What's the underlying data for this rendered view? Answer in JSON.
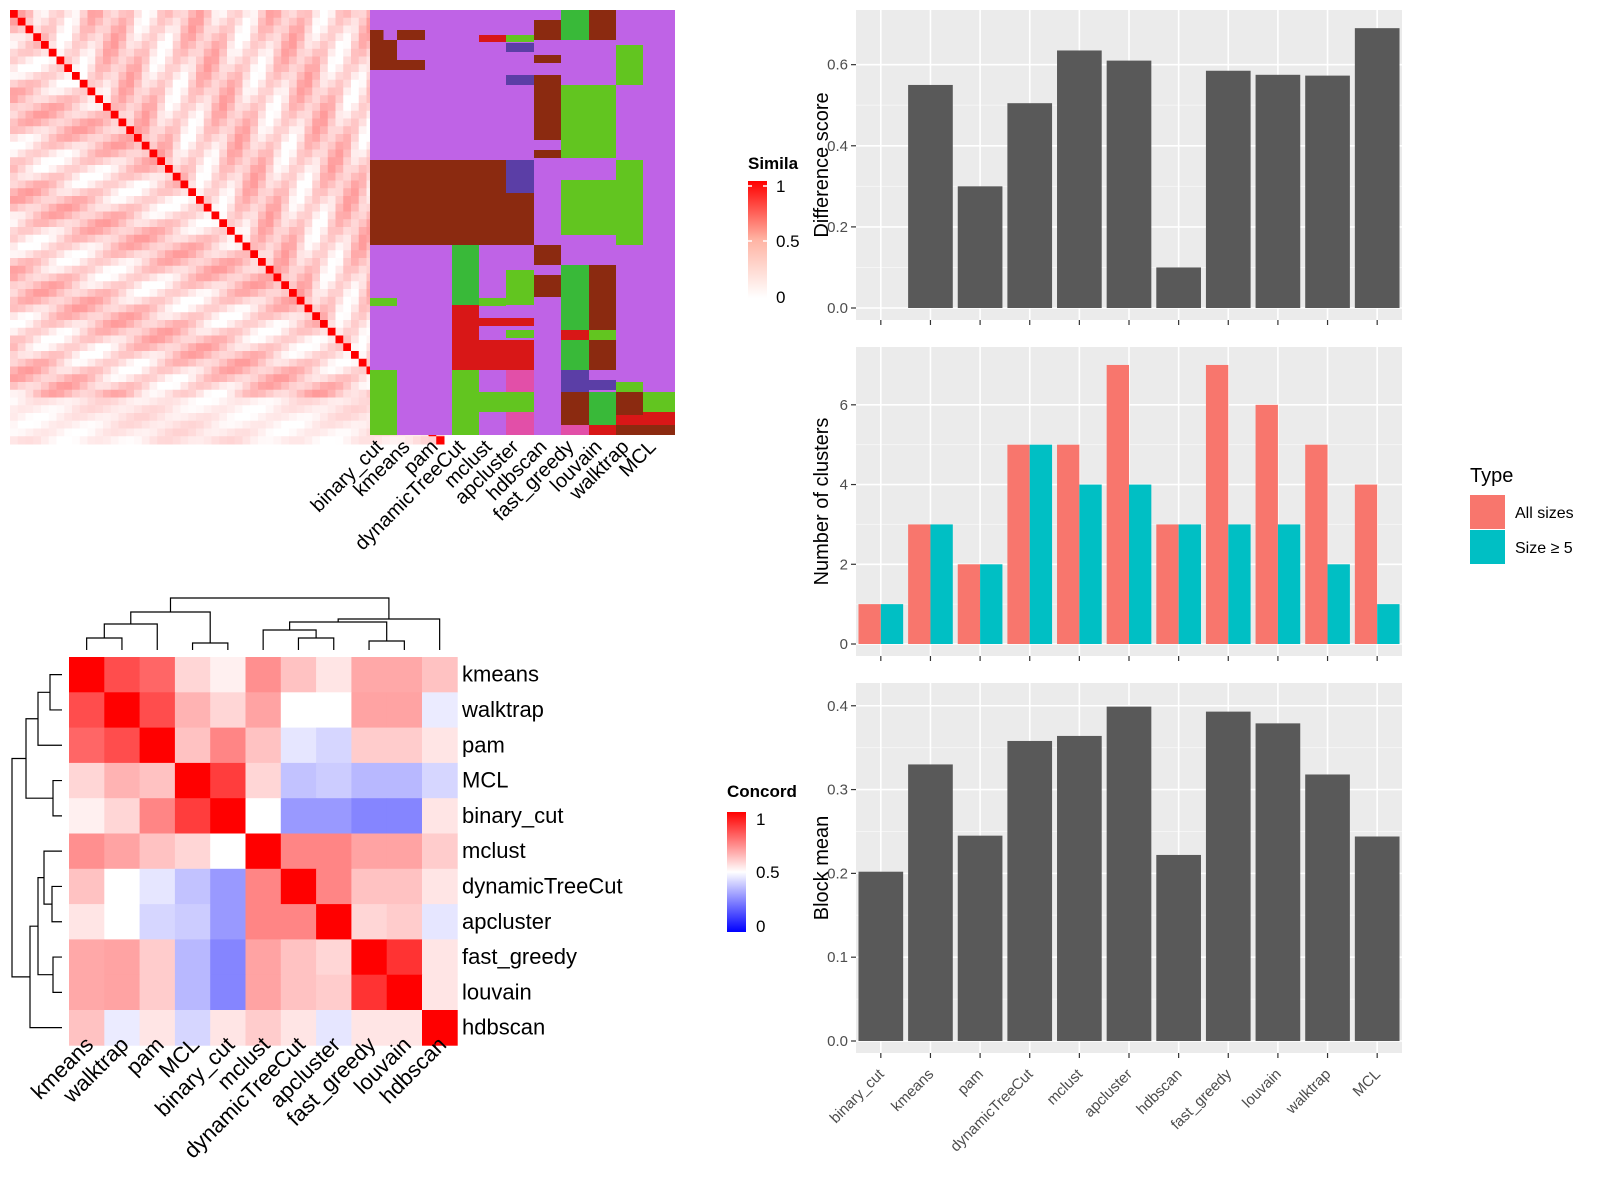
{
  "chart_data": [
    {
      "type": "heatmap",
      "panel": "similarity-heatmap",
      "legend": {
        "title": "Similarity",
        "title_visible": "Simila",
        "ticks": [
          "1",
          "0.5",
          "0"
        ],
        "colors": [
          "#ffffff",
          "#ff0000"
        ]
      },
      "size": 56,
      "diagonal_value": 1,
      "note_colors": {
        "low": "#ffffff",
        "high": "#ff0000"
      }
    },
    {
      "type": "heatmap",
      "panel": "cluster-membership",
      "columns": [
        "binary_cut",
        "kmeans",
        "pam",
        "dynamicTreeCut",
        "mclust",
        "apcluster",
        "hdbscan",
        "fast_greedy",
        "louvain",
        "walktrap",
        "MCL"
      ],
      "palette": {
        "purple": "#bf63e6",
        "brown": "#8b2a10",
        "green": "#62c520",
        "lime": "#39b939",
        "red": "#d81717",
        "pink": "#e24fa8",
        "indigo": "#5b3ea6"
      },
      "segments": [
        {
          "col": 1,
          "y0": 30,
          "y1": 40,
          "color": "brown",
          "w": 0.5
        },
        {
          "col": 1,
          "y0": 40,
          "y1": 70,
          "color": "brown"
        },
        {
          "col": 1,
          "y0": 160,
          "y1": 245,
          "color": "brown"
        },
        {
          "col": 1,
          "y0": 298,
          "y1": 306,
          "color": "green"
        },
        {
          "col": 1,
          "y0": 370,
          "y1": 435,
          "color": "green"
        },
        {
          "col": 2,
          "y0": 30,
          "y1": 40,
          "color": "brown"
        },
        {
          "col": 2,
          "y0": 60,
          "y1": 70,
          "color": "brown"
        },
        {
          "col": 2,
          "y0": 160,
          "y1": 245,
          "color": "brown"
        },
        {
          "col": 3,
          "y0": 160,
          "y1": 245,
          "color": "brown"
        },
        {
          "col": 4,
          "y0": 160,
          "y1": 245,
          "color": "brown"
        },
        {
          "col": 4,
          "y0": 245,
          "y1": 305,
          "color": "lime"
        },
        {
          "col": 4,
          "y0": 305,
          "y1": 370,
          "color": "red"
        },
        {
          "col": 4,
          "y0": 370,
          "y1": 435,
          "color": "green"
        },
        {
          "col": 5,
          "y0": 35,
          "y1": 42,
          "color": "red"
        },
        {
          "col": 5,
          "y0": 160,
          "y1": 245,
          "color": "brown"
        },
        {
          "col": 5,
          "y0": 298,
          "y1": 306,
          "color": "green"
        },
        {
          "col": 5,
          "y0": 318,
          "y1": 326,
          "color": "red"
        },
        {
          "col": 5,
          "y0": 340,
          "y1": 370,
          "color": "red"
        },
        {
          "col": 5,
          "y0": 392,
          "y1": 412,
          "color": "green"
        },
        {
          "col": 6,
          "y0": 35,
          "y1": 42,
          "color": "green"
        },
        {
          "col": 6,
          "y0": 43,
          "y1": 52,
          "color": "indigo"
        },
        {
          "col": 6,
          "y0": 75,
          "y1": 85,
          "color": "indigo"
        },
        {
          "col": 6,
          "y0": 160,
          "y1": 193,
          "color": "indigo"
        },
        {
          "col": 6,
          "y0": 193,
          "y1": 245,
          "color": "brown"
        },
        {
          "col": 6,
          "y0": 270,
          "y1": 305,
          "color": "green"
        },
        {
          "col": 6,
          "y0": 318,
          "y1": 326,
          "color": "red"
        },
        {
          "col": 6,
          "y0": 330,
          "y1": 338,
          "color": "green"
        },
        {
          "col": 6,
          "y0": 340,
          "y1": 370,
          "color": "red"
        },
        {
          "col": 6,
          "y0": 370,
          "y1": 392,
          "color": "pink"
        },
        {
          "col": 6,
          "y0": 392,
          "y1": 412,
          "color": "green"
        },
        {
          "col": 6,
          "y0": 412,
          "y1": 435,
          "color": "pink"
        },
        {
          "col": 7,
          "y0": 20,
          "y1": 40,
          "color": "brown"
        },
        {
          "col": 7,
          "y0": 55,
          "y1": 63,
          "color": "brown"
        },
        {
          "col": 7,
          "y0": 75,
          "y1": 140,
          "color": "brown"
        },
        {
          "col": 7,
          "y0": 150,
          "y1": 158,
          "color": "brown"
        },
        {
          "col": 7,
          "y0": 245,
          "y1": 265,
          "color": "brown"
        },
        {
          "col": 7,
          "y0": 275,
          "y1": 297,
          "color": "brown"
        },
        {
          "col": 8,
          "y0": 10,
          "y1": 40,
          "color": "lime"
        },
        {
          "col": 8,
          "y0": 85,
          "y1": 158,
          "color": "green"
        },
        {
          "col": 8,
          "y0": 180,
          "y1": 235,
          "color": "green"
        },
        {
          "col": 8,
          "y0": 265,
          "y1": 330,
          "color": "lime"
        },
        {
          "col": 8,
          "y0": 330,
          "y1": 340,
          "color": "red"
        },
        {
          "col": 8,
          "y0": 340,
          "y1": 370,
          "color": "lime"
        },
        {
          "col": 8,
          "y0": 370,
          "y1": 392,
          "color": "indigo"
        },
        {
          "col": 8,
          "y0": 392,
          "y1": 425,
          "color": "brown"
        },
        {
          "col": 8,
          "y0": 425,
          "y1": 435,
          "color": "pink"
        },
        {
          "col": 9,
          "y0": 10,
          "y1": 40,
          "color": "brown"
        },
        {
          "col": 9,
          "y0": 85,
          "y1": 158,
          "color": "green"
        },
        {
          "col": 9,
          "y0": 180,
          "y1": 235,
          "color": "green"
        },
        {
          "col": 9,
          "y0": 265,
          "y1": 330,
          "color": "brown"
        },
        {
          "col": 9,
          "y0": 330,
          "y1": 340,
          "color": "green"
        },
        {
          "col": 9,
          "y0": 340,
          "y1": 370,
          "color": "brown"
        },
        {
          "col": 9,
          "y0": 380,
          "y1": 390,
          "color": "indigo"
        },
        {
          "col": 9,
          "y0": 392,
          "y1": 425,
          "color": "lime"
        },
        {
          "col": 9,
          "y0": 425,
          "y1": 435,
          "color": "red"
        },
        {
          "col": 10,
          "y0": 45,
          "y1": 85,
          "color": "green"
        },
        {
          "col": 10,
          "y0": 160,
          "y1": 245,
          "color": "green"
        },
        {
          "col": 10,
          "y0": 382,
          "y1": 392,
          "color": "green"
        },
        {
          "col": 10,
          "y0": 392,
          "y1": 415,
          "color": "brown"
        },
        {
          "col": 10,
          "y0": 415,
          "y1": 425,
          "color": "red"
        },
        {
          "col": 10,
          "y0": 425,
          "y1": 435,
          "color": "brown"
        },
        {
          "col": 11,
          "y0": 392,
          "y1": 412,
          "color": "green"
        },
        {
          "col": 11,
          "y0": 412,
          "y1": 425,
          "color": "red"
        },
        {
          "col": 11,
          "y0": 425,
          "y1": 435,
          "color": "brown"
        }
      ]
    },
    {
      "type": "heatmap",
      "panel": "concordance-heatmap",
      "rows": [
        "kmeans",
        "walktrap",
        "pam",
        "MCL",
        "binary_cut",
        "mclust",
        "dynamicTreeCut",
        "apcluster",
        "fast_greedy",
        "louvain",
        "hdbscan"
      ],
      "columns": [
        "kmeans",
        "walktrap",
        "pam",
        "MCL",
        "binary_cut",
        "mclust",
        "dynamicTreeCut",
        "apcluster",
        "fast_greedy",
        "louvain",
        "hdbscan"
      ],
      "values": [
        [
          1.0,
          0.85,
          0.8,
          0.58,
          0.53,
          0.72,
          0.62,
          0.55,
          0.67,
          0.67,
          0.62
        ],
        [
          0.85,
          1.0,
          0.85,
          0.65,
          0.58,
          0.68,
          0.5,
          0.5,
          0.68,
          0.68,
          0.46
        ],
        [
          0.8,
          0.85,
          1.0,
          0.62,
          0.74,
          0.62,
          0.45,
          0.42,
          0.6,
          0.6,
          0.55
        ],
        [
          0.58,
          0.65,
          0.62,
          1.0,
          0.88,
          0.58,
          0.38,
          0.4,
          0.36,
          0.36,
          0.42
        ],
        [
          0.53,
          0.58,
          0.74,
          0.88,
          1.0,
          0.5,
          0.3,
          0.3,
          0.26,
          0.26,
          0.55
        ],
        [
          0.72,
          0.68,
          0.62,
          0.58,
          0.5,
          1.0,
          0.74,
          0.74,
          0.68,
          0.68,
          0.6
        ],
        [
          0.62,
          0.5,
          0.45,
          0.38,
          0.3,
          0.74,
          1.0,
          0.74,
          0.62,
          0.62,
          0.55
        ],
        [
          0.55,
          0.5,
          0.42,
          0.4,
          0.3,
          0.74,
          0.74,
          1.0,
          0.58,
          0.6,
          0.45
        ],
        [
          0.67,
          0.68,
          0.6,
          0.36,
          0.26,
          0.68,
          0.62,
          0.58,
          1.0,
          0.9,
          0.55
        ],
        [
          0.67,
          0.68,
          0.6,
          0.36,
          0.26,
          0.68,
          0.62,
          0.6,
          0.9,
          1.0,
          0.55
        ],
        [
          0.62,
          0.46,
          0.55,
          0.42,
          0.55,
          0.6,
          0.55,
          0.45,
          0.55,
          0.55,
          1.0
        ]
      ],
      "legend": {
        "title": "Concordance",
        "title_visible": "Concord",
        "ticks": [
          "1",
          "0.5",
          "0"
        ],
        "colors": [
          "#0000ff",
          "#ffffff",
          "#ff0000"
        ]
      }
    },
    {
      "type": "bar",
      "panel": "difference-score",
      "categories": [
        "binary_cut",
        "kmeans",
        "pam",
        "dynamicTreeCut",
        "mclust",
        "apcluster",
        "hdbscan",
        "fast_greedy",
        "louvain",
        "walktrap",
        "MCL"
      ],
      "values": [
        0.0,
        0.55,
        0.3,
        0.505,
        0.635,
        0.61,
        0.1,
        0.585,
        0.575,
        0.573,
        0.69
      ],
      "ylabel": "Difference score",
      "ylim": [
        0,
        0.72
      ],
      "yticks": [
        "0.0",
        "0.2",
        "0.4",
        "0.6"
      ],
      "bar_color": "#595959"
    },
    {
      "type": "bar",
      "panel": "number-of-clusters",
      "categories": [
        "binary_cut",
        "kmeans",
        "pam",
        "dynamicTreeCut",
        "mclust",
        "apcluster",
        "hdbscan",
        "fast_greedy",
        "louvain",
        "walktrap",
        "MCL"
      ],
      "series": [
        {
          "name": "All sizes",
          "values": [
            1,
            3,
            2,
            5,
            5,
            7,
            3,
            7,
            6,
            5,
            4
          ],
          "color": "#f8766d"
        },
        {
          "name": "Size ≥ 5",
          "values": [
            1,
            3,
            2,
            5,
            4,
            4,
            3,
            3,
            3,
            2,
            1
          ],
          "color": "#00bfc4"
        }
      ],
      "ylabel": "Number of clusters",
      "ylim": [
        0,
        7.3
      ],
      "yticks": [
        "0",
        "2",
        "4",
        "6"
      ],
      "legend": {
        "title": "Type",
        "position": "right"
      }
    },
    {
      "type": "bar",
      "panel": "block-mean",
      "categories": [
        "binary_cut",
        "kmeans",
        "pam",
        "dynamicTreeCut",
        "mclust",
        "apcluster",
        "hdbscan",
        "fast_greedy",
        "louvain",
        "walktrap",
        "MCL"
      ],
      "values": [
        0.202,
        0.33,
        0.245,
        0.358,
        0.364,
        0.399,
        0.222,
        0.393,
        0.379,
        0.318,
        0.244
      ],
      "ylabel": "Block mean",
      "ylim": [
        0,
        0.42
      ],
      "yticks": [
        "0.0",
        "0.1",
        "0.2",
        "0.3",
        "0.4"
      ],
      "bar_color": "#595959"
    }
  ]
}
